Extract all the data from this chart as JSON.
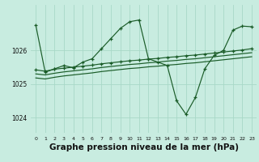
{
  "bg_color": "#c8ece0",
  "grid_color": "#a8d8c8",
  "line_color": "#1a5c28",
  "title": "Graphe pression niveau de la mer (hPa)",
  "title_fontsize": 7.5,
  "xlim": [
    -0.5,
    23.5
  ],
  "ylim": [
    1023.55,
    1027.35
  ],
  "yticks": [
    1024,
    1025,
    1026
  ],
  "xticks": [
    0,
    1,
    2,
    3,
    4,
    5,
    6,
    7,
    8,
    9,
    10,
    11,
    12,
    13,
    14,
    15,
    16,
    17,
    18,
    19,
    20,
    21,
    22,
    23
  ],
  "series1": [
    1026.75,
    1025.35,
    1025.45,
    1025.55,
    1025.48,
    1025.65,
    1025.75,
    1026.05,
    1026.35,
    1026.65,
    1026.85,
    1026.9,
    1025.75,
    1025.65,
    1025.55,
    1024.5,
    1024.1,
    1024.6,
    1025.45,
    1025.85,
    1026.0,
    1026.6,
    1026.72,
    1026.7
  ],
  "series2": [
    1025.42,
    1025.38,
    1025.44,
    1025.47,
    1025.5,
    1025.53,
    1025.56,
    1025.6,
    1025.63,
    1025.66,
    1025.69,
    1025.71,
    1025.74,
    1025.76,
    1025.79,
    1025.81,
    1025.84,
    1025.86,
    1025.89,
    1025.92,
    1025.95,
    1025.98,
    1026.01,
    1026.05
  ],
  "series3": [
    1025.3,
    1025.27,
    1025.32,
    1025.36,
    1025.39,
    1025.42,
    1025.45,
    1025.49,
    1025.52,
    1025.55,
    1025.58,
    1025.6,
    1025.63,
    1025.65,
    1025.68,
    1025.7,
    1025.73,
    1025.75,
    1025.78,
    1025.81,
    1025.84,
    1025.87,
    1025.9,
    1025.93
  ],
  "series4": [
    1025.18,
    1025.15,
    1025.2,
    1025.24,
    1025.27,
    1025.3,
    1025.33,
    1025.37,
    1025.4,
    1025.43,
    1025.46,
    1025.48,
    1025.51,
    1025.53,
    1025.56,
    1025.58,
    1025.61,
    1025.63,
    1025.66,
    1025.69,
    1025.72,
    1025.75,
    1025.78,
    1025.81
  ]
}
